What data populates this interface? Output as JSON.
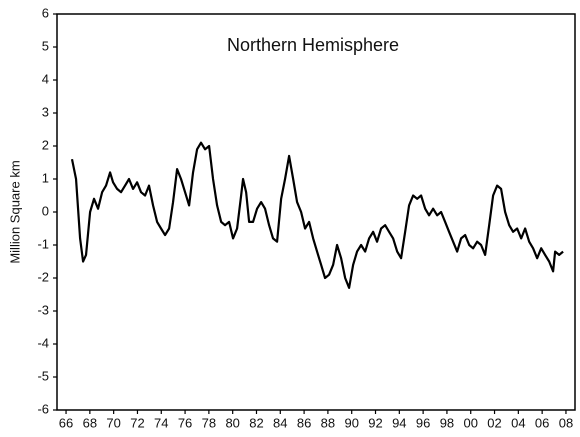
{
  "chart_data": {
    "type": "line",
    "title": "Northern Hemisphere",
    "y_label": "Million Square km",
    "x": [
      1966.5,
      1966.84,
      1967.18,
      1967.43,
      1967.68,
      1968.02,
      1968.35,
      1968.69,
      1969.03,
      1969.36,
      1969.7,
      1969.95,
      1970.29,
      1970.62,
      1970.96,
      1971.29,
      1971.63,
      1971.97,
      1972.3,
      1972.64,
      1972.97,
      1973.31,
      1973.65,
      1973.98,
      1974.32,
      1974.66,
      1974.99,
      1975.33,
      1975.66,
      1976.0,
      1976.34,
      1976.67,
      1977.01,
      1977.34,
      1977.68,
      1978.02,
      1978.35,
      1978.69,
      1979.03,
      1979.36,
      1979.7,
      1980.03,
      1980.37,
      1980.71,
      1980.87,
      1981.13,
      1981.38,
      1981.71,
      1982.05,
      1982.39,
      1982.72,
      1983.06,
      1983.39,
      1983.73,
      1984.07,
      1984.4,
      1984.74,
      1985.08,
      1985.41,
      1985.75,
      1986.08,
      1986.42,
      1986.76,
      1987.09,
      1987.43,
      1987.76,
      1988.1,
      1988.44,
      1988.77,
      1989.11,
      1989.45,
      1989.78,
      1990.12,
      1990.45,
      1990.79,
      1991.13,
      1991.46,
      1991.8,
      1992.13,
      1992.47,
      1992.81,
      1993.14,
      1993.48,
      1993.82,
      1994.15,
      1994.49,
      1994.82,
      1995.16,
      1995.5,
      1995.83,
      1996.17,
      1996.5,
      1996.84,
      1997.18,
      1997.51,
      1997.85,
      1998.18,
      1998.52,
      1998.86,
      1999.19,
      1999.53,
      1999.87,
      2000.2,
      2000.54,
      2000.87,
      2001.21,
      2001.55,
      2001.88,
      2002.22,
      2002.55,
      2002.89,
      2003.23,
      2003.56,
      2003.9,
      2004.24,
      2004.57,
      2004.91,
      2005.24,
      2005.58,
      2005.92,
      2006.25,
      2006.59,
      2006.92,
      2007.09,
      2007.43,
      2007.76
    ],
    "series": [
      {
        "color": "#000000",
        "values": [
          1.6,
          1.0,
          -0.8,
          -1.5,
          -1.3,
          0.0,
          0.4,
          0.1,
          0.6,
          0.8,
          1.2,
          0.9,
          0.7,
          0.6,
          0.8,
          1.0,
          0.7,
          0.9,
          0.6,
          0.5,
          0.8,
          0.2,
          -0.3,
          -0.5,
          -0.7,
          -0.5,
          0.3,
          1.3,
          1.0,
          0.6,
          0.2,
          1.2,
          1.9,
          2.1,
          1.9,
          2.0,
          1.0,
          0.2,
          -0.3,
          -0.4,
          -0.3,
          -0.8,
          -0.5,
          0.5,
          1.0,
          0.6,
          -0.3,
          -0.3,
          0.1,
          0.3,
          0.1,
          -0.4,
          -0.8,
          -0.9,
          0.4,
          1.0,
          1.7,
          1.0,
          0.3,
          0.0,
          -0.5,
          -0.3,
          -0.8,
          -1.2,
          -1.6,
          -2.0,
          -1.9,
          -1.6,
          -1.0,
          -1.4,
          -2.0,
          -2.3,
          -1.6,
          -1.2,
          -1.0,
          -1.2,
          -0.8,
          -0.6,
          -0.9,
          -0.5,
          -0.4,
          -0.6,
          -0.8,
          -1.2,
          -1.4,
          -0.6,
          0.2,
          0.5,
          0.4,
          0.5,
          0.1,
          -0.1,
          0.1,
          -0.1,
          0.0,
          -0.3,
          -0.6,
          -0.9,
          -1.2,
          -0.8,
          -0.7,
          -1.0,
          -1.1,
          -0.9,
          -1.0,
          -1.3,
          -0.4,
          0.5,
          0.8,
          0.7,
          0.0,
          -0.4,
          -0.6,
          -0.5,
          -0.8,
          -0.5,
          -0.9,
          -1.1,
          -1.4,
          -1.1,
          -1.3,
          -1.5,
          -1.8,
          -1.2,
          -1.3,
          -1.2
        ]
      }
    ],
    "xlim": [
      1965.24,
      2008.76
    ],
    "xticks": [
      {
        "value": 1966,
        "label": "66"
      },
      {
        "value": 1968,
        "label": "68"
      },
      {
        "value": 1970,
        "label": "70"
      },
      {
        "value": 1972,
        "label": "72"
      },
      {
        "value": 1974,
        "label": "74"
      },
      {
        "value": 1976,
        "label": "76"
      },
      {
        "value": 1978,
        "label": "78"
      },
      {
        "value": 1980,
        "label": "80"
      },
      {
        "value": 1982,
        "label": "82"
      },
      {
        "value": 1984,
        "label": "84"
      },
      {
        "value": 1986,
        "label": "86"
      },
      {
        "value": 1988,
        "label": "88"
      },
      {
        "value": 1990,
        "label": "90"
      },
      {
        "value": 1992,
        "label": "92"
      },
      {
        "value": 1994,
        "label": "94"
      },
      {
        "value": 1996,
        "label": "96"
      },
      {
        "value": 1998,
        "label": "98"
      },
      {
        "value": 2000,
        "label": "00"
      },
      {
        "value": 2002,
        "label": "02"
      },
      {
        "value": 2004,
        "label": "04"
      },
      {
        "value": 2006,
        "label": "06"
      },
      {
        "value": 2008,
        "label": "08"
      }
    ],
    "ylim": [
      -6,
      6
    ],
    "yticks": [
      -6,
      -5,
      -4,
      -3,
      -2,
      -1,
      0,
      1,
      2,
      3,
      4,
      5,
      6
    ]
  }
}
